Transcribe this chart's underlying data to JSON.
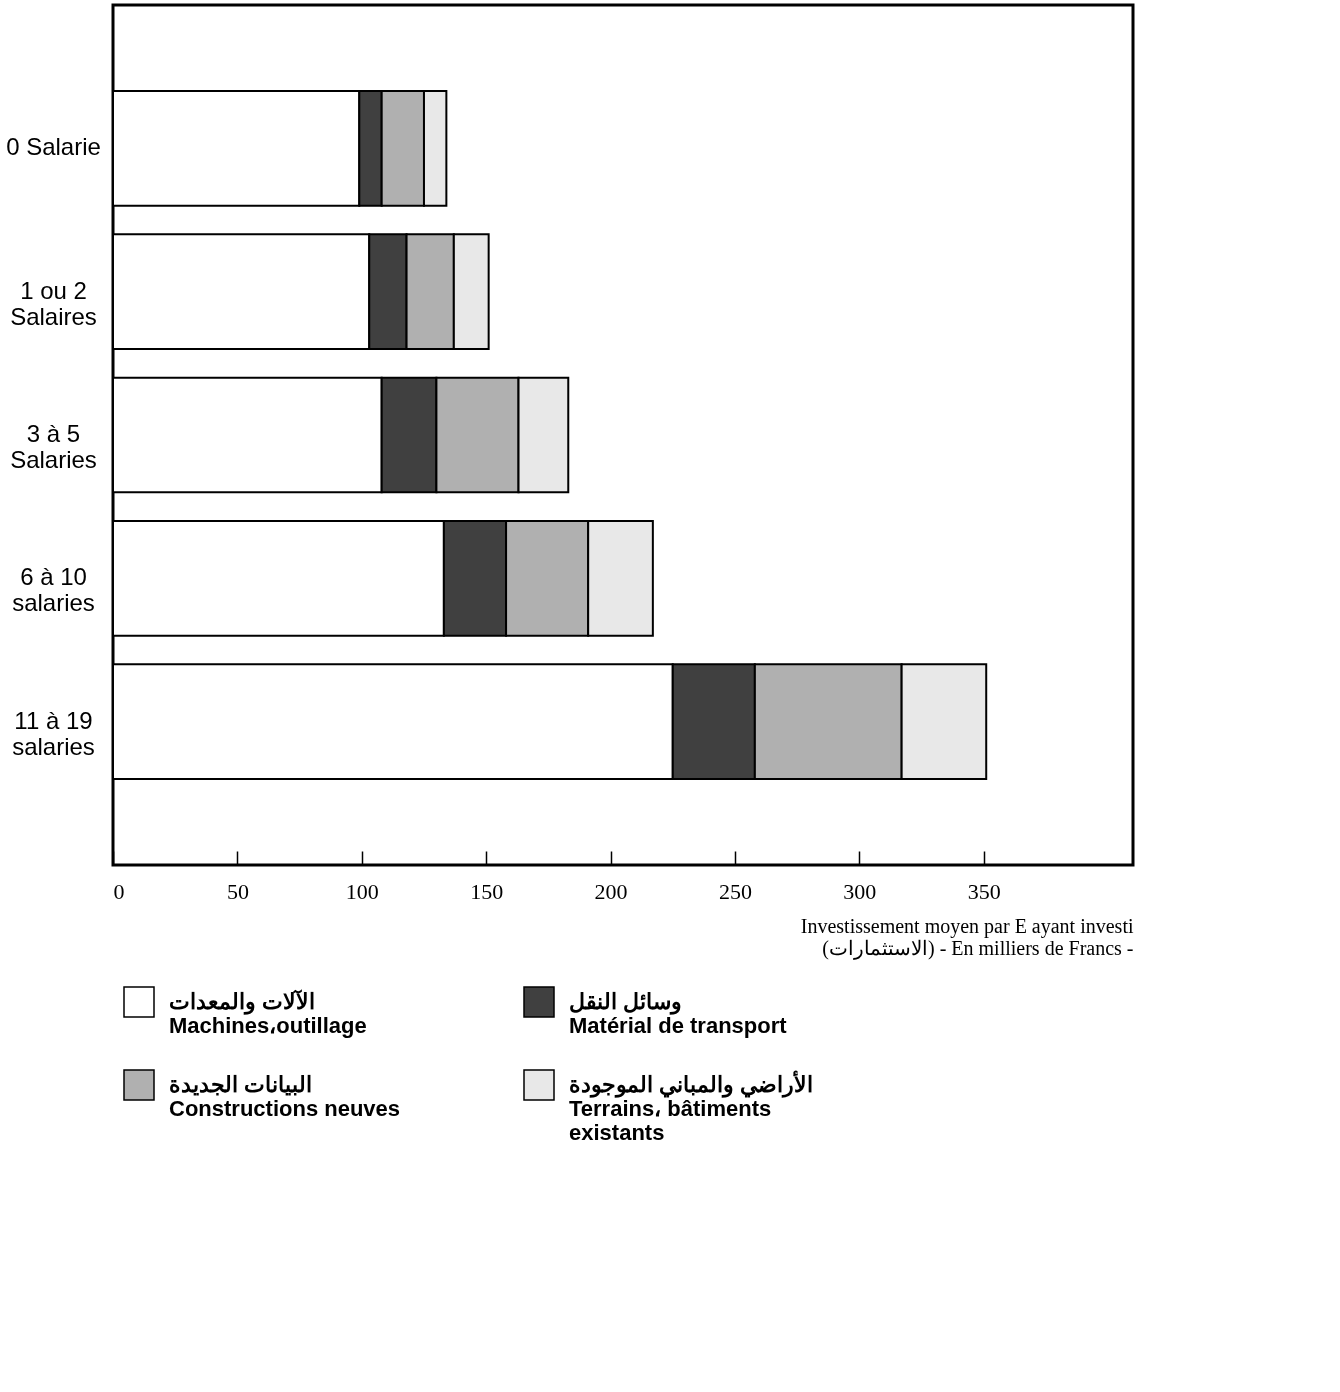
{
  "chart_data": {
    "type": "bar",
    "orientation": "horizontal",
    "stacked": true,
    "categories": [
      "0 Salarie",
      "1 ou 2\nSalaires",
      "3 à 5\nSalaries",
      "6 à 10\nsalaries",
      "11 à 19\nsalaries"
    ],
    "series": [
      {
        "name": "الآلات والمعدات\nMachines،outillage",
        "color": "#ffffff",
        "values": [
          99,
          103,
          108,
          133,
          225
        ]
      },
      {
        "name": "وسائل النقل\nMatérial de transport",
        "color": "#404040",
        "values": [
          9,
          15,
          22,
          25,
          33
        ]
      },
      {
        "name": "البيانات الجديدة\nConstructions neuves",
        "color": "#b0b0b0",
        "values": [
          17,
          19,
          33,
          33,
          59
        ]
      },
      {
        "name": "الأراضي والمباني الموجودة\nTerrains، bâtiments\nexistants",
        "color": "#e8e8e8",
        "values": [
          9,
          14,
          20,
          26,
          34
        ]
      }
    ],
    "xlim": [
      0,
      410
    ],
    "xticks": [
      0,
      50,
      100,
      150,
      200,
      250,
      300,
      350
    ],
    "xlabel": "Investissement moyen par E ayant investi\n(الاستثمارات) - En milliers de Francs -",
    "grid": false,
    "legend": "bottom"
  }
}
